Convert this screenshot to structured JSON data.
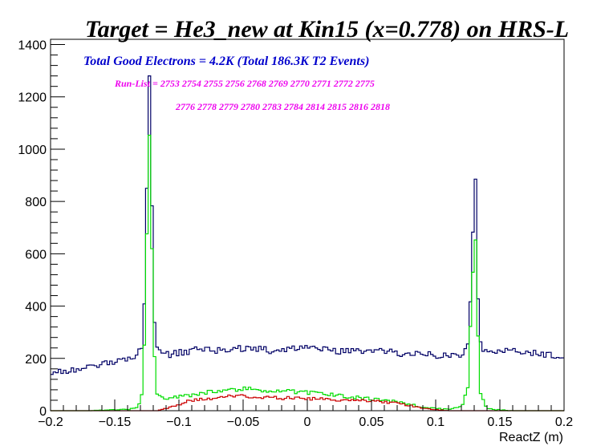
{
  "chart_data": {
    "type": "histogram",
    "title": "Target = He3_new at Kin15 (x=0.778) on HRS-L",
    "xlabel": "ReactZ (m)",
    "ylabel": "",
    "xlim": [
      -0.2,
      0.2
    ],
    "ylim": [
      0,
      1420
    ],
    "x_ticks": [
      -0.2,
      -0.15,
      -0.1,
      -0.05,
      0,
      0.05,
      0.1,
      0.15,
      0.2
    ],
    "x_tick_labels": [
      "−0.2",
      "−0.15",
      "−0.1",
      "−0.05",
      "0",
      "0.05",
      "0.1",
      "0.15",
      "0.2"
    ],
    "y_ticks": [
      0,
      200,
      400,
      600,
      800,
      1000,
      1200,
      1400
    ],
    "y_tick_labels": [
      "0",
      "200",
      "400",
      "600",
      "800",
      "1000",
      "1200",
      "1400"
    ],
    "annotations": [
      {
        "text": "Total Good Electrons =  4.2K (Total 186.3K T2 Events)",
        "color": "#0000cc"
      },
      {
        "text": "Run-List = 2753 2754 2755 2756 2768 2769 2770 2771 2772 2775",
        "color": "#ee00ee"
      },
      {
        "text": "2776 2778 2779 2780 2783 2784 2814 2815 2816 2818",
        "color": "#ee00ee"
      }
    ],
    "bins": 200,
    "series": [
      {
        "color": "#000066",
        "points": [
          [
            -0.2,
            145
          ],
          [
            -0.185,
            155
          ],
          [
            -0.17,
            165
          ],
          [
            -0.16,
            175
          ],
          [
            -0.15,
            190
          ],
          [
            -0.14,
            200
          ],
          [
            -0.132,
            215
          ],
          [
            -0.128,
            260
          ],
          [
            -0.126,
            550
          ],
          [
            -0.124,
            1200
          ],
          [
            -0.123,
            1285
          ],
          [
            -0.122,
            1260
          ],
          [
            -0.121,
            800
          ],
          [
            -0.119,
            330
          ],
          [
            -0.117,
            240
          ],
          [
            -0.11,
            215
          ],
          [
            -0.1,
            220
          ],
          [
            -0.09,
            230
          ],
          [
            -0.08,
            235
          ],
          [
            -0.07,
            230
          ],
          [
            -0.06,
            235
          ],
          [
            -0.05,
            240
          ],
          [
            -0.04,
            235
          ],
          [
            -0.03,
            230
          ],
          [
            -0.02,
            235
          ],
          [
            -0.01,
            240
          ],
          [
            0,
            235
          ],
          [
            0.01,
            240
          ],
          [
            0.02,
            230
          ],
          [
            0.03,
            225
          ],
          [
            0.04,
            230
          ],
          [
            0.05,
            225
          ],
          [
            0.06,
            225
          ],
          [
            0.07,
            220
          ],
          [
            0.08,
            215
          ],
          [
            0.09,
            215
          ],
          [
            0.1,
            210
          ],
          [
            0.11,
            215
          ],
          [
            0.12,
            215
          ],
          [
            0.125,
            250
          ],
          [
            0.127,
            430
          ],
          [
            0.129,
            700
          ],
          [
            0.13,
            920
          ],
          [
            0.131,
            880
          ],
          [
            0.133,
            430
          ],
          [
            0.135,
            250
          ],
          [
            0.14,
            225
          ],
          [
            0.15,
            230
          ],
          [
            0.16,
            225
          ],
          [
            0.17,
            225
          ],
          [
            0.18,
            220
          ],
          [
            0.19,
            215
          ],
          [
            0.2,
            205
          ]
        ]
      },
      {
        "color": "#00dd00",
        "points": [
          [
            -0.2,
            0
          ],
          [
            -0.185,
            0
          ],
          [
            -0.17,
            0
          ],
          [
            -0.16,
            2
          ],
          [
            -0.15,
            3
          ],
          [
            -0.14,
            5
          ],
          [
            -0.132,
            12
          ],
          [
            -0.128,
            80
          ],
          [
            -0.126,
            400
          ],
          [
            -0.124,
            950
          ],
          [
            -0.123,
            1025
          ],
          [
            -0.122,
            1000
          ],
          [
            -0.121,
            600
          ],
          [
            -0.119,
            200
          ],
          [
            -0.117,
            60
          ],
          [
            -0.11,
            45
          ],
          [
            -0.1,
            55
          ],
          [
            -0.09,
            60
          ],
          [
            -0.08,
            70
          ],
          [
            -0.07,
            75
          ],
          [
            -0.06,
            80
          ],
          [
            -0.05,
            85
          ],
          [
            -0.04,
            80
          ],
          [
            -0.03,
            78
          ],
          [
            -0.02,
            75
          ],
          [
            -0.01,
            72
          ],
          [
            0,
            70
          ],
          [
            0.01,
            65
          ],
          [
            0.02,
            60
          ],
          [
            0.03,
            55
          ],
          [
            0.04,
            50
          ],
          [
            0.05,
            45
          ],
          [
            0.06,
            40
          ],
          [
            0.07,
            35
          ],
          [
            0.08,
            25
          ],
          [
            0.09,
            12
          ],
          [
            0.1,
            8
          ],
          [
            0.11,
            5
          ],
          [
            0.12,
            15
          ],
          [
            0.125,
            80
          ],
          [
            0.127,
            330
          ],
          [
            0.129,
            550
          ],
          [
            0.13,
            680
          ],
          [
            0.131,
            640
          ],
          [
            0.133,
            280
          ],
          [
            0.135,
            60
          ],
          [
            0.14,
            8
          ],
          [
            0.15,
            3
          ],
          [
            0.16,
            0
          ],
          [
            0.17,
            0
          ],
          [
            0.18,
            0
          ],
          [
            0.19,
            0
          ],
          [
            0.2,
            0
          ]
        ]
      },
      {
        "color": "#cc0000",
        "points": [
          [
            -0.2,
            0
          ],
          [
            -0.185,
            0
          ],
          [
            -0.17,
            0
          ],
          [
            -0.16,
            0
          ],
          [
            -0.15,
            0
          ],
          [
            -0.14,
            0
          ],
          [
            -0.132,
            0
          ],
          [
            -0.128,
            0
          ],
          [
            -0.126,
            0
          ],
          [
            -0.124,
            0
          ],
          [
            -0.123,
            0
          ],
          [
            -0.122,
            0
          ],
          [
            -0.121,
            0
          ],
          [
            -0.119,
            0
          ],
          [
            -0.117,
            0
          ],
          [
            -0.11,
            10
          ],
          [
            -0.1,
            25
          ],
          [
            -0.09,
            40
          ],
          [
            -0.08,
            45
          ],
          [
            -0.07,
            50
          ],
          [
            -0.06,
            55
          ],
          [
            -0.05,
            55
          ],
          [
            -0.04,
            52
          ],
          [
            -0.03,
            50
          ],
          [
            -0.02,
            48
          ],
          [
            -0.01,
            50
          ],
          [
            0,
            45
          ],
          [
            0.01,
            45
          ],
          [
            0.02,
            42
          ],
          [
            0.03,
            40
          ],
          [
            0.04,
            38
          ],
          [
            0.05,
            38
          ],
          [
            0.06,
            32
          ],
          [
            0.07,
            28
          ],
          [
            0.08,
            20
          ],
          [
            0.09,
            10
          ],
          [
            0.1,
            4
          ],
          [
            0.11,
            0
          ],
          [
            0.12,
            0
          ],
          [
            0.125,
            0
          ],
          [
            0.127,
            0
          ],
          [
            0.129,
            0
          ],
          [
            0.13,
            0
          ],
          [
            0.131,
            0
          ],
          [
            0.133,
            0
          ],
          [
            0.135,
            0
          ],
          [
            0.14,
            0
          ],
          [
            0.15,
            0
          ],
          [
            0.16,
            0
          ],
          [
            0.17,
            0
          ],
          [
            0.18,
            0
          ],
          [
            0.19,
            0
          ],
          [
            0.2,
            0
          ]
        ]
      }
    ]
  }
}
